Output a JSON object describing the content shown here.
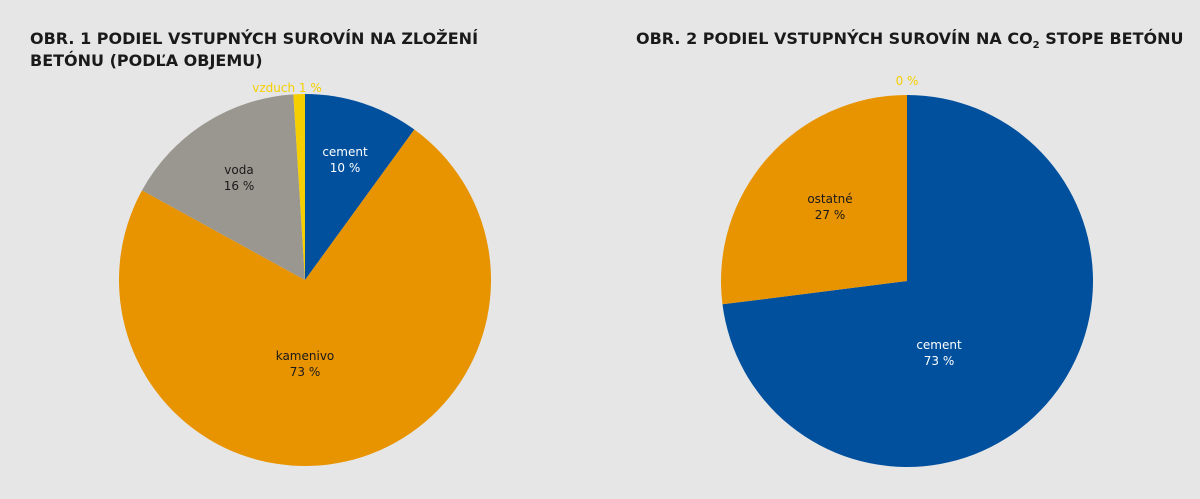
{
  "chart_data": [
    {
      "type": "pie",
      "title_lines": [
        "OBR. 1  PODIEL VSTUPNÝCH SUROVÍN NA ZLOŽENÍ",
        "BETÓNU (PODĽA OBJEMU)"
      ],
      "slices": [
        {
          "label": "cement",
          "value_label": "10 %",
          "value": 10,
          "color": "#00509e",
          "text_color": "#ffffff"
        },
        {
          "label": "kamenivo",
          "value_label": "73 %",
          "value": 73,
          "color": "#e89300",
          "text_color": "#1a1a1a"
        },
        {
          "label": "voda",
          "value_label": "16 %",
          "value": 16,
          "color": "#9a9791",
          "text_color": "#1a1a1a"
        },
        {
          "label": "vzduch",
          "value_label": "1 %",
          "value": 1,
          "color": "#f5cf00",
          "text_color": "#f5cf00"
        }
      ]
    },
    {
      "type": "pie",
      "title_parts": [
        "OBR. 2  PODIEL VSTUPNÝCH SUROVÍN NA CO",
        "2",
        " STOPE BETÓNU"
      ],
      "slices": [
        {
          "label": "cement",
          "value_label": "73 %",
          "value": 73,
          "color": "#00509e",
          "text_color": "#ffffff"
        },
        {
          "label": "ostatné",
          "value_label": "27 %",
          "value": 27,
          "color": "#e89300",
          "text_color": "#1a1a1a"
        },
        {
          "label": "",
          "value_label": "0 %",
          "value": 0,
          "color": "#f5cf00",
          "text_color": "#f5cf00"
        }
      ]
    }
  ]
}
